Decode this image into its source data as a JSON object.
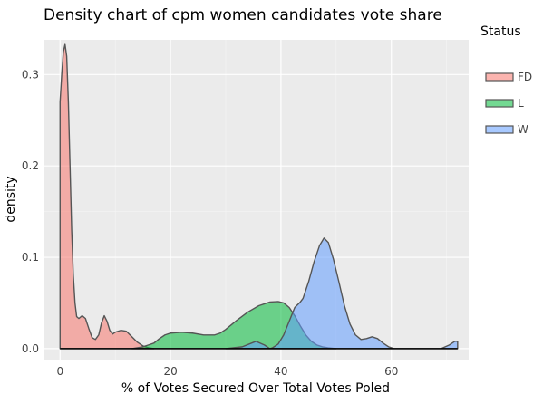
{
  "chart_data": {
    "type": "area",
    "title": "Density chart of cpm women candidates vote share",
    "xlabel": "% of Votes Secured Over Total Votes Poled",
    "ylabel": "density",
    "xlim": [
      -3,
      74
    ],
    "ylim": [
      -0.012,
      0.338
    ],
    "x_ticks": [
      0,
      20,
      40,
      60
    ],
    "y_ticks": [
      0.0,
      0.1,
      0.2,
      0.3
    ],
    "x_tick_labels": [
      "0",
      "20",
      "40",
      "60"
    ],
    "y_tick_labels": [
      "0.0",
      "0.1",
      "0.2",
      "0.3"
    ],
    "grid": true,
    "legend": {
      "title": "Status",
      "placement": "right"
    },
    "series": [
      {
        "name": "FD",
        "color": "#f8766d",
        "points": [
          [
            0.0,
            0.27
          ],
          [
            0.3,
            0.3
          ],
          [
            0.6,
            0.325
          ],
          [
            0.9,
            0.333
          ],
          [
            1.2,
            0.32
          ],
          [
            1.5,
            0.27
          ],
          [
            1.8,
            0.2
          ],
          [
            2.1,
            0.13
          ],
          [
            2.4,
            0.08
          ],
          [
            2.7,
            0.05
          ],
          [
            3.0,
            0.035
          ],
          [
            3.4,
            0.033
          ],
          [
            4.0,
            0.036
          ],
          [
            4.6,
            0.033
          ],
          [
            5.2,
            0.022
          ],
          [
            5.8,
            0.012
          ],
          [
            6.4,
            0.01
          ],
          [
            7.0,
            0.015
          ],
          [
            7.5,
            0.028
          ],
          [
            8.0,
            0.036
          ],
          [
            8.5,
            0.03
          ],
          [
            9.0,
            0.02
          ],
          [
            9.5,
            0.016
          ],
          [
            10.0,
            0.018
          ],
          [
            11.0,
            0.02
          ],
          [
            12.0,
            0.019
          ],
          [
            13.0,
            0.013
          ],
          [
            14.0,
            0.007
          ],
          [
            15.0,
            0.003
          ],
          [
            16.0,
            0.001
          ],
          [
            17.0,
            0.0
          ]
        ]
      },
      {
        "name": "L",
        "color": "#00ba38",
        "points": [
          [
            13.0,
            0.0
          ],
          [
            15.0,
            0.002
          ],
          [
            16.0,
            0.004
          ],
          [
            17.0,
            0.006
          ],
          [
            18.0,
            0.011
          ],
          [
            19.0,
            0.015
          ],
          [
            20.0,
            0.017
          ],
          [
            22.0,
            0.018
          ],
          [
            24.0,
            0.017
          ],
          [
            26.0,
            0.015
          ],
          [
            28.0,
            0.015
          ],
          [
            29.0,
            0.017
          ],
          [
            30.0,
            0.021
          ],
          [
            31.0,
            0.026
          ],
          [
            32.0,
            0.031
          ],
          [
            34.0,
            0.04
          ],
          [
            36.0,
            0.047
          ],
          [
            38.0,
            0.051
          ],
          [
            39.5,
            0.0515
          ],
          [
            40.5,
            0.05
          ],
          [
            41.5,
            0.045
          ],
          [
            42.5,
            0.036
          ],
          [
            43.5,
            0.025
          ],
          [
            44.5,
            0.015
          ],
          [
            45.5,
            0.008
          ],
          [
            46.5,
            0.004
          ],
          [
            47.5,
            0.002
          ],
          [
            48.5,
            0.001
          ],
          [
            50.0,
            0.0
          ]
        ]
      },
      {
        "name": "W",
        "color": "#619cff",
        "points": [
          [
            30.0,
            0.0
          ],
          [
            33.0,
            0.002
          ],
          [
            35.5,
            0.008
          ],
          [
            37.0,
            0.004
          ],
          [
            38.0,
            0.0
          ],
          [
            38.5,
            0.001
          ],
          [
            39.5,
            0.005
          ],
          [
            40.5,
            0.015
          ],
          [
            41.5,
            0.03
          ],
          [
            42.5,
            0.045
          ],
          [
            43.5,
            0.051
          ],
          [
            44.0,
            0.055
          ],
          [
            45.0,
            0.073
          ],
          [
            46.0,
            0.095
          ],
          [
            47.0,
            0.113
          ],
          [
            47.8,
            0.121
          ],
          [
            48.6,
            0.116
          ],
          [
            49.5,
            0.098
          ],
          [
            50.5,
            0.073
          ],
          [
            51.5,
            0.047
          ],
          [
            52.5,
            0.027
          ],
          [
            53.5,
            0.015
          ],
          [
            54.5,
            0.01
          ],
          [
            55.5,
            0.011
          ],
          [
            56.5,
            0.013
          ],
          [
            57.5,
            0.011
          ],
          [
            58.5,
            0.006
          ],
          [
            59.5,
            0.002
          ],
          [
            60.5,
            0.0
          ],
          [
            65.0,
            0.0
          ],
          [
            69.0,
            0.0
          ],
          [
            70.5,
            0.004
          ],
          [
            71.5,
            0.008
          ],
          [
            72.0,
            0.008
          ]
        ]
      }
    ]
  }
}
